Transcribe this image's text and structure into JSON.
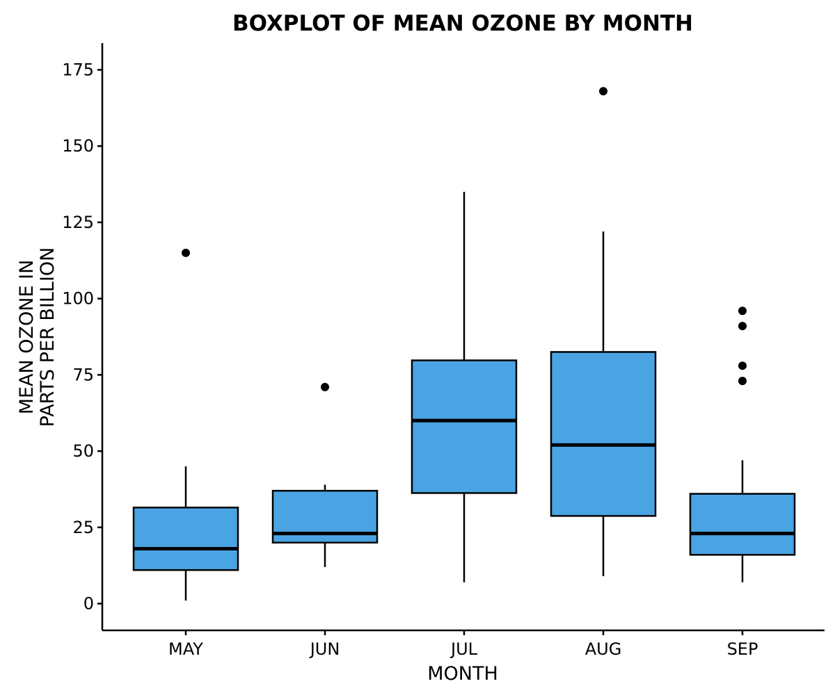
{
  "chart_data": {
    "type": "boxplot",
    "title": "BOXPLOT OF MEAN OZONE BY MONTH",
    "xlabel": "MONTH",
    "ylabel_lines": [
      "MEAN OZONE IN",
      "PARTS PER BILLION"
    ],
    "ylim": [
      -9,
      183
    ],
    "yticks": [
      0,
      25,
      50,
      75,
      100,
      125,
      150,
      175
    ],
    "grid": false,
    "fill_color": "#4aa4e3",
    "categories": [
      "MAY",
      "JUN",
      "JUL",
      "AUG",
      "SEP"
    ],
    "boxes": [
      {
        "category": "MAY",
        "whisker_low": 1,
        "q1": 11,
        "median": 18,
        "q3": 31.5,
        "whisker_high": 45,
        "outliers": [
          115
        ]
      },
      {
        "category": "JUN",
        "whisker_low": 12,
        "q1": 20,
        "median": 23,
        "q3": 37,
        "whisker_high": 39,
        "outliers": [
          71
        ]
      },
      {
        "category": "JUL",
        "whisker_low": 7,
        "q1": 36.25,
        "median": 60,
        "q3": 79.75,
        "whisker_high": 135,
        "outliers": []
      },
      {
        "category": "AUG",
        "whisker_low": 9,
        "q1": 28.75,
        "median": 52,
        "q3": 82.5,
        "whisker_high": 122,
        "outliers": [
          168
        ]
      },
      {
        "category": "SEP",
        "whisker_low": 7,
        "q1": 16,
        "median": 23,
        "q3": 36,
        "whisker_high": 47,
        "outliers": [
          73,
          78,
          91,
          96
        ]
      }
    ]
  }
}
